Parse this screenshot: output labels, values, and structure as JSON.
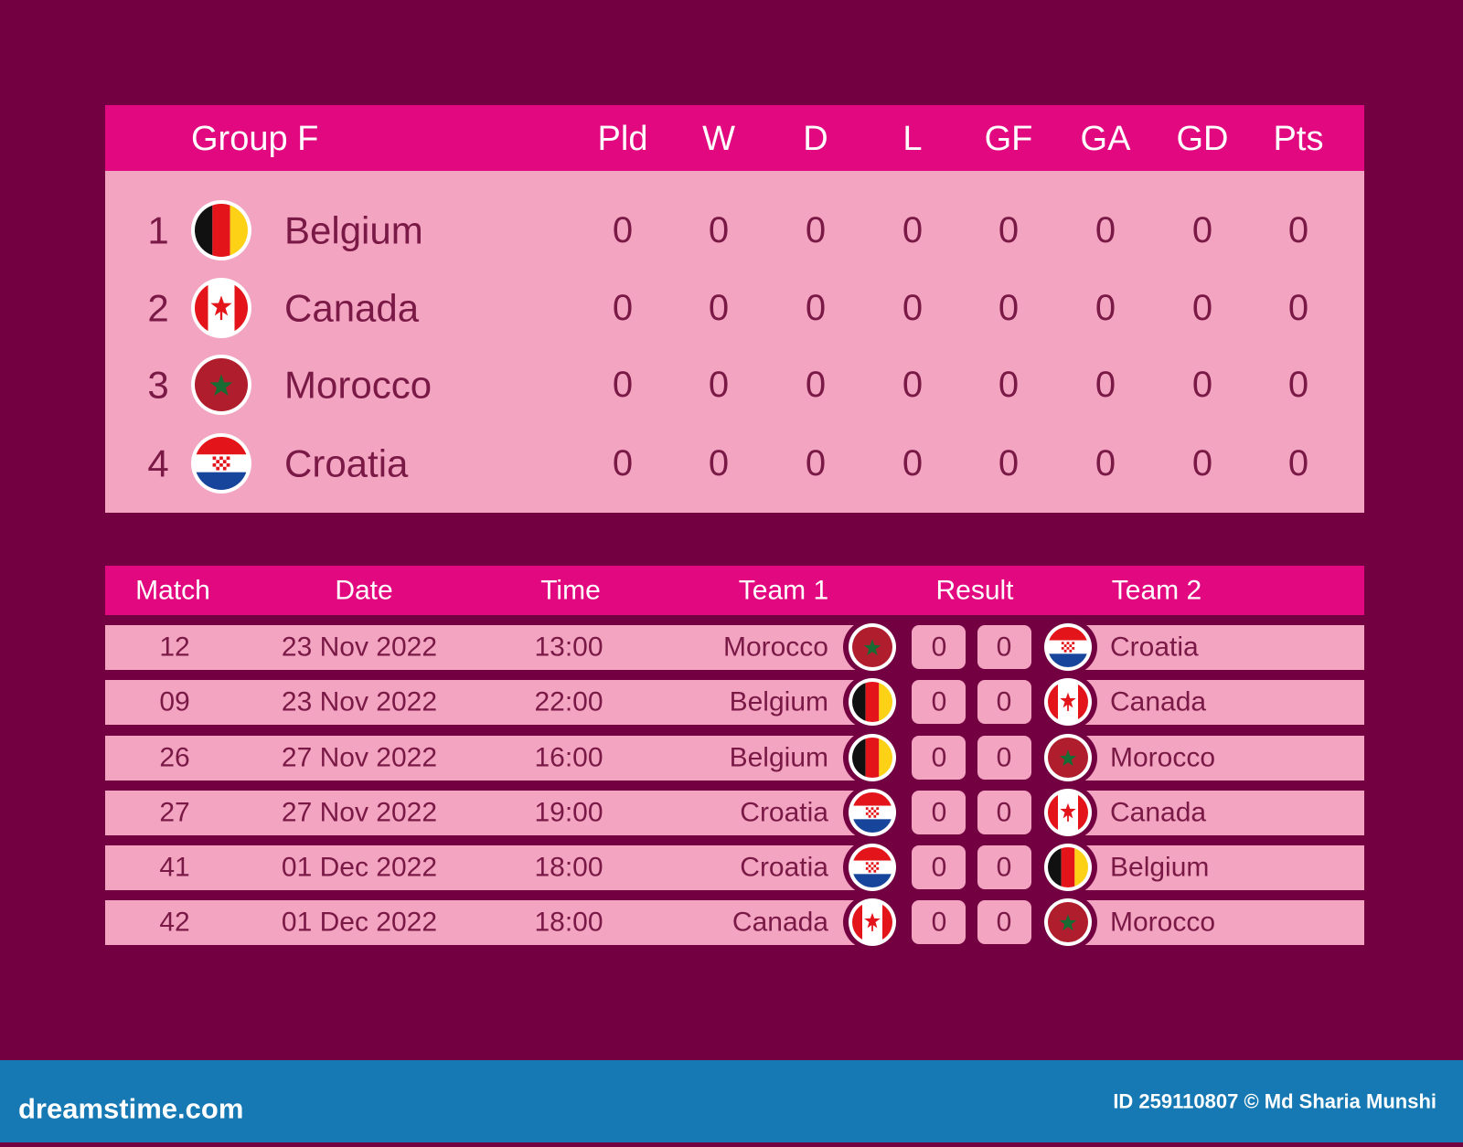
{
  "standings": {
    "header": {
      "group": "Group F",
      "columns": [
        "Pld",
        "W",
        "D",
        "L",
        "GF",
        "GA",
        "GD",
        "Pts"
      ]
    },
    "rows": [
      {
        "rank": 1,
        "team": "Belgium",
        "stats": [
          0,
          0,
          0,
          0,
          0,
          0,
          0,
          0
        ]
      },
      {
        "rank": 2,
        "team": "Canada",
        "stats": [
          0,
          0,
          0,
          0,
          0,
          0,
          0,
          0
        ]
      },
      {
        "rank": 3,
        "team": "Morocco",
        "stats": [
          0,
          0,
          0,
          0,
          0,
          0,
          0,
          0
        ]
      },
      {
        "rank": 4,
        "team": "Croatia",
        "stats": [
          0,
          0,
          0,
          0,
          0,
          0,
          0,
          0
        ]
      }
    ]
  },
  "matches": {
    "header": [
      "Match",
      "Date",
      "Time",
      "Team 1",
      "Result",
      "Team 2"
    ],
    "rows": [
      {
        "match": "12",
        "date": "23 Nov 2022",
        "time": "13:00",
        "team1": "Morocco",
        "score1": 0,
        "score2": 0,
        "team2": "Croatia"
      },
      {
        "match": "09",
        "date": "23 Nov 2022",
        "time": "22:00",
        "team1": "Belgium",
        "score1": 0,
        "score2": 0,
        "team2": "Canada"
      },
      {
        "match": "26",
        "date": "27 Nov 2022",
        "time": "16:00",
        "team1": "Belgium",
        "score1": 0,
        "score2": 0,
        "team2": "Morocco"
      },
      {
        "match": "27",
        "date": "27 Nov 2022",
        "time": "19:00",
        "team1": "Croatia",
        "score1": 0,
        "score2": 0,
        "team2": "Canada"
      },
      {
        "match": "41",
        "date": "01 Dec 2022",
        "time": "18:00",
        "team1": "Croatia",
        "score1": 0,
        "score2": 0,
        "team2": "Belgium"
      },
      {
        "match": "42",
        "date": "01 Dec 2022",
        "time": "18:00",
        "team1": "Canada",
        "score1": 0,
        "score2": 0,
        "team2": "Morocco"
      }
    ]
  },
  "footer": {
    "site": "dreamstime.com",
    "credit": "ID 259110807 © Md Sharia Munshi"
  }
}
